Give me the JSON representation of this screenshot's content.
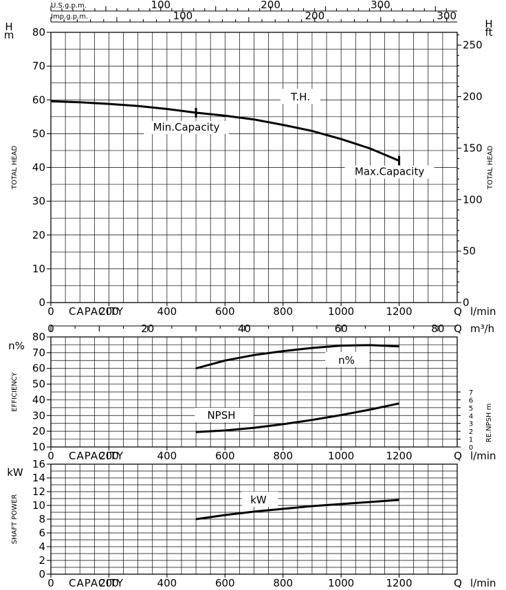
{
  "chart_data": [
    {
      "type": "line",
      "name": "head",
      "label": "T.H.",
      "x": [
        0,
        100,
        200,
        300,
        400,
        500,
        600,
        700,
        800,
        900,
        1000,
        1100,
        1200
      ],
      "values": [
        59.6,
        59.3,
        58.8,
        58.2,
        57.3,
        56.2,
        55.3,
        54.2,
        52.6,
        50.8,
        48.4,
        45.6,
        42.0
      ],
      "xlim": [
        0,
        1400
      ],
      "ylim": [
        0,
        80
      ],
      "y_ticks": [
        0,
        10,
        20,
        30,
        40,
        50,
        60,
        70,
        80
      ],
      "x_ticks": [
        0,
        200,
        400,
        600,
        800,
        1000,
        1200
      ],
      "left_unit": [
        "H",
        "m"
      ],
      "right_unit": [
        "H",
        "ft"
      ],
      "ft_ticks": [
        0,
        50,
        100,
        150,
        200,
        250
      ],
      "ft_tick_labels": [
        "0",
        "50",
        "100",
        "150",
        "200",
        "250"
      ],
      "ylabel": "TOTAL HEAD",
      "right_label": "TOTAL HEAD",
      "xlabel": "CAPACITY",
      "x_unit": [
        "Q",
        "l/min"
      ],
      "top_scales": [
        {
          "label": "U.S.g.p.m.",
          "ticks": [
            100,
            200,
            300
          ],
          "factor": 0.264172
        },
        {
          "label": "Imp.g.p.m.",
          "ticks": [
            100,
            200,
            300
          ],
          "factor": 0.219969
        }
      ],
      "markers": [
        {
          "label": "Min.Capacity",
          "x": 500,
          "y": 56.2
        },
        {
          "label": "Max.Capacity",
          "x": 1200,
          "y": 42.0
        }
      ],
      "m3h_scale": {
        "unit": [
          "Q",
          "m³/h"
        ],
        "ticks": [
          0,
          20,
          40,
          60,
          80
        ]
      }
    },
    {
      "type": "line",
      "name": "efficiency",
      "series": [
        {
          "name": "n%",
          "x": [
            500,
            600,
            700,
            800,
            900,
            1000,
            1100,
            1200
          ],
          "values": [
            60,
            65,
            68.5,
            71,
            73,
            74.5,
            74.8,
            74
          ]
        },
        {
          "name": "NPSH",
          "x": [
            500,
            600,
            700,
            800,
            900,
            1000,
            1100,
            1200
          ],
          "values": [
            19.5,
            20.5,
            22.2,
            24.5,
            27.2,
            30.3,
            33.8,
            37.7
          ]
        }
      ],
      "xlim": [
        0,
        1400
      ],
      "ylim": [
        10,
        80
      ],
      "y_ticks": [
        10,
        20,
        30,
        40,
        50,
        60,
        70,
        80
      ],
      "x_ticks": [
        0,
        200,
        400,
        600,
        800,
        1000,
        1200
      ],
      "left_unit": "n%",
      "ylabel": "EFFICIENCY",
      "right_label": "RE.NPSH m",
      "npsh_ticks": [
        0,
        1,
        2,
        3,
        4,
        5,
        6,
        7
      ],
      "xlabel": "CAPACITY",
      "x_unit": [
        "Q",
        "l/min"
      ]
    },
    {
      "type": "line",
      "name": "power",
      "series": [
        {
          "name": "kW",
          "x": [
            500,
            600,
            700,
            800,
            900,
            1000,
            1100,
            1200
          ],
          "values": [
            8.0,
            8.6,
            9.1,
            9.5,
            9.9,
            10.2,
            10.5,
            10.8
          ]
        }
      ],
      "xlim": [
        0,
        1400
      ],
      "ylim": [
        0,
        16
      ],
      "y_ticks": [
        0,
        2,
        4,
        6,
        8,
        10,
        12,
        14,
        16
      ],
      "x_ticks": [
        0,
        200,
        400,
        600,
        800,
        1000,
        1200
      ],
      "left_unit": "kW",
      "ylabel": "SHAFT POWER",
      "xlabel": "CAPACITY",
      "x_unit": [
        "Q",
        "l/min"
      ]
    }
  ]
}
